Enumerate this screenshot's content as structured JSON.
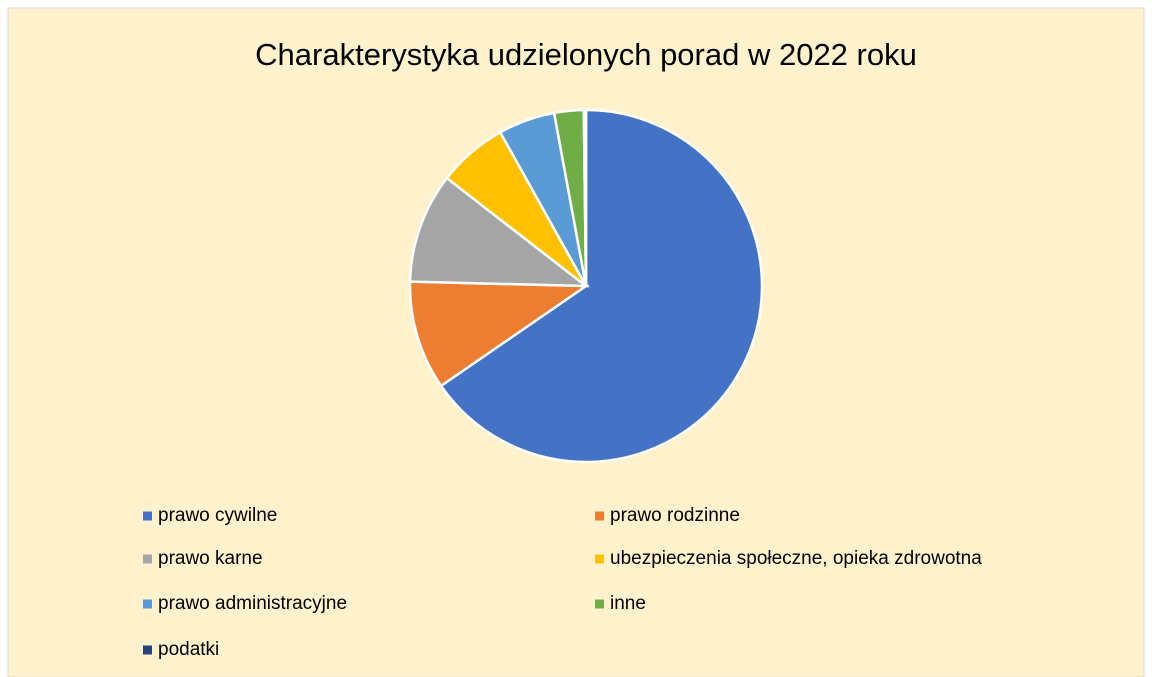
{
  "chart_data": {
    "type": "pie",
    "title": "Charakterystyka udzielonych porad w 2022 roku",
    "categories": [
      "prawo cywilne",
      "prawo rodzinne",
      "prawo karne",
      "ubezpieczenia społeczne, opieka zdrowotna",
      "prawo administracyjne",
      "inne",
      "podatki"
    ],
    "values": [
      65.4,
      10,
      10.1,
      6.4,
      5.2,
      2.7,
      0.2
    ],
    "colors": [
      "#4472c4",
      "#ed7d31",
      "#a5a5a5",
      "#ffc000",
      "#5b9bd5",
      "#70ad47",
      "#264478"
    ],
    "legend": "bottom"
  }
}
